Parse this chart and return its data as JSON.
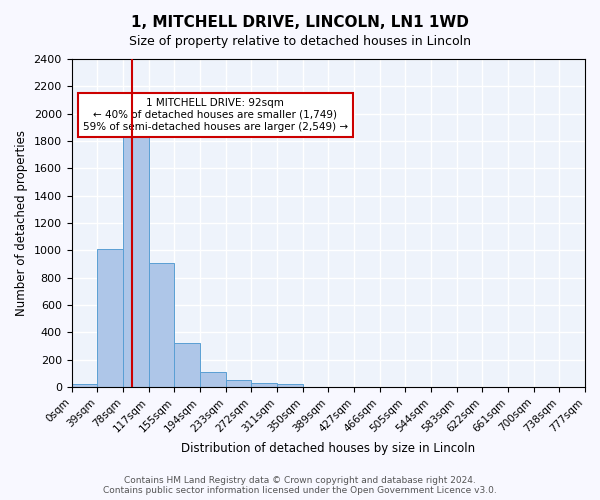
{
  "title": "1, MITCHELL DRIVE, LINCOLN, LN1 1WD",
  "subtitle": "Size of property relative to detached houses in Lincoln",
  "xlabel": "Distribution of detached houses by size in Lincoln",
  "ylabel": "Number of detached properties",
  "bin_labels": [
    "0sqm",
    "39sqm",
    "78sqm",
    "117sqm",
    "155sqm",
    "194sqm",
    "233sqm",
    "272sqm",
    "311sqm",
    "350sqm",
    "389sqm",
    "427sqm",
    "466sqm",
    "505sqm",
    "544sqm",
    "583sqm",
    "622sqm",
    "661sqm",
    "700sqm",
    "738sqm",
    "777sqm"
  ],
  "bar_heights": [
    25,
    1010,
    1920,
    910,
    320,
    108,
    50,
    30,
    25,
    0,
    0,
    0,
    0,
    0,
    0,
    0,
    0,
    0,
    0,
    0
  ],
  "bar_color": "#aec6e8",
  "bar_edge_color": "#5a9fd4",
  "background_color": "#eef3fb",
  "grid_color": "#ffffff",
  "red_line_x": 2.36,
  "annotation_text": "1 MITCHELL DRIVE: 92sqm\n← 40% of detached houses are smaller (1,749)\n59% of semi-detached houses are larger (2,549) →",
  "annotation_box_color": "#ffffff",
  "annotation_box_edge": "#cc0000",
  "footer_text": "Contains HM Land Registry data © Crown copyright and database right 2024.\nContains public sector information licensed under the Open Government Licence v3.0.",
  "ylim": [
    0,
    2400
  ],
  "yticks": [
    0,
    200,
    400,
    600,
    800,
    1000,
    1200,
    1400,
    1600,
    1800,
    2000,
    2200,
    2400
  ]
}
